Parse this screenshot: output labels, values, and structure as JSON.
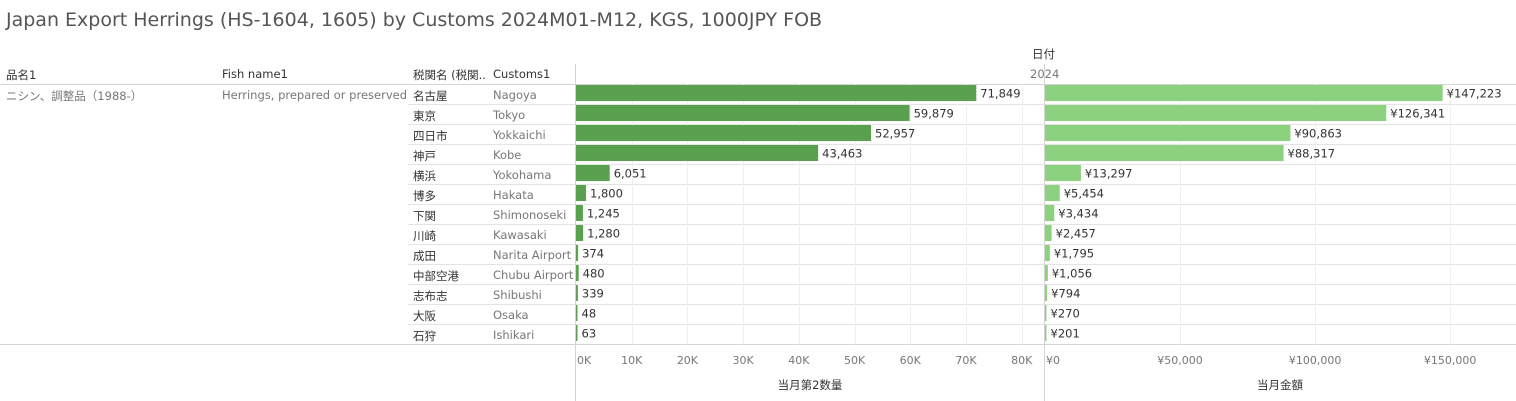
{
  "title": "Japan Export Herrings (HS-1604, 1605) by Customs 2024M01-M12, KGS, 1000JPY FOB",
  "headers": {
    "col_product": "品名1",
    "col_fish": "Fish name1",
    "col_customs_jp": "税関名 (税関..",
    "col_customs_en": "Customs1",
    "date_header": "日付",
    "year": "2024"
  },
  "row_group": {
    "product": "ニシン、調整品（1988-）",
    "fish": "Herrings, prepared or preserved"
  },
  "chart_data": {
    "type": "bar",
    "categories_jp": [
      "名古屋",
      "東京",
      "四日市",
      "神戸",
      "横浜",
      "博多",
      "下関",
      "川崎",
      "成田",
      "中部空港",
      "志布志",
      "大阪",
      "石狩"
    ],
    "categories": [
      "Nagoya",
      "Tokyo",
      "Yokkaichi",
      "Kobe",
      "Yokohama",
      "Hakata",
      "Shimonoseki",
      "Kawasaki",
      "Narita Airport",
      "Chubu Airport",
      "Shibushi",
      "Osaka",
      "Ishikari"
    ],
    "series": [
      {
        "name": "当月第2数量",
        "values": [
          71849,
          59879,
          52957,
          43463,
          6051,
          1800,
          1245,
          1280,
          374,
          480,
          339,
          48,
          63
        ],
        "labels": [
          "71,849",
          "59,879",
          "52,957",
          "43,463",
          "6,051",
          "1,800",
          "1,245",
          "1,280",
          "374",
          "480",
          "339",
          "48",
          "63"
        ],
        "xlim": [
          0,
          84000
        ],
        "ticks": [
          0,
          10000,
          20000,
          30000,
          40000,
          50000,
          60000,
          70000,
          80000
        ],
        "tick_labels": [
          "0K",
          "10K",
          "20K",
          "30K",
          "40K",
          "50K",
          "60K",
          "70K",
          "80K"
        ],
        "axis_title": "当月第2数量",
        "color": "#59a14f"
      },
      {
        "name": "当月金額",
        "values": [
          147223,
          126341,
          90863,
          88317,
          13297,
          5454,
          3434,
          2457,
          1795,
          1056,
          794,
          270,
          201
        ],
        "labels": [
          "¥147,223",
          "¥126,341",
          "¥90,863",
          "¥88,317",
          "¥13,297",
          "¥5,454",
          "¥3,434",
          "¥2,457",
          "¥1,795",
          "¥1,056",
          "¥794",
          "¥270",
          "¥201"
        ],
        "xlim": [
          0,
          174000
        ],
        "ticks": [
          0,
          50000,
          100000,
          150000
        ],
        "tick_labels": [
          "¥0",
          "¥50,000",
          "¥100,000",
          "¥150,000"
        ],
        "axis_title": "当月金額",
        "color": "#8cd17d"
      }
    ],
    "grid": true
  }
}
